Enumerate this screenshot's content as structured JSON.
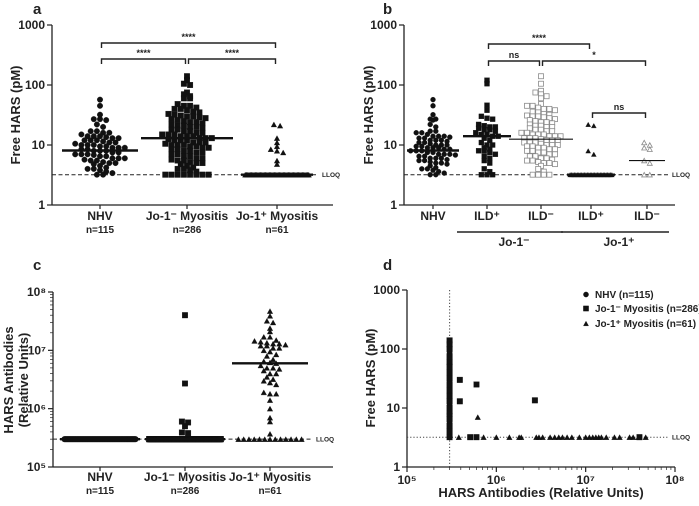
{
  "chart_data": [
    {
      "panel": "a",
      "type": "scatter",
      "subtype": "dot-plot-median",
      "ylabel": "Free HARS (pM)",
      "yscale": "log",
      "ylim": [
        1,
        1000
      ],
      "yticks": [
        "1",
        "10",
        "100",
        "1000"
      ],
      "lloq": {
        "value": 3.2,
        "label": "LLOQ"
      },
      "groups": [
        {
          "label": "NHV",
          "n_label": "n=115",
          "marker": "circle",
          "fill": "#111111",
          "median": 8.1,
          "lloq_count": 0,
          "values": [
            57,
            45,
            32,
            27,
            27,
            26,
            22,
            20,
            17,
            17,
            16,
            16,
            15,
            14,
            14,
            14,
            13.5,
            13,
            13,
            12,
            12,
            12,
            11.5,
            11,
            11,
            10.5,
            10,
            10,
            10,
            9.5,
            9.5,
            9,
            9,
            9,
            8.5,
            8.5,
            8,
            8,
            8,
            7.5,
            7.5,
            7,
            7,
            7,
            6.8,
            6.5,
            6.5,
            6,
            6,
            6,
            5.7,
            5.5,
            5.5,
            5.2,
            5,
            5,
            4.8,
            4.5,
            4.2,
            4,
            4,
            3.8,
            3.6,
            3.4,
            3.2,
            3.2
          ]
        },
        {
          "label": "Jo-1⁻ Myositis",
          "n_label": "n=286",
          "marker": "square",
          "fill": "#111111",
          "median": 13,
          "lloq_count": 8,
          "values": [
            140,
            120,
            105,
            100,
            75,
            70,
            65,
            60,
            60,
            48,
            45,
            45,
            42,
            40,
            40,
            38,
            36,
            35,
            33,
            32,
            31,
            30,
            30,
            29,
            28,
            27,
            26,
            25,
            24,
            24,
            23,
            22,
            21,
            21,
            20,
            20,
            19,
            18,
            18,
            17,
            17,
            16,
            16,
            15,
            15,
            15,
            14,
            14,
            14,
            13,
            13,
            13,
            12.5,
            12,
            12,
            12,
            11,
            11,
            11,
            10.5,
            10,
            10,
            10,
            9.5,
            9.5,
            9,
            9,
            8.5,
            8.5,
            8,
            8,
            7.5,
            7.5,
            7,
            7,
            6.5,
            6.5,
            6,
            6,
            5.7,
            5.5,
            5.5,
            5.2,
            5,
            5,
            4.8,
            4.5,
            4.2,
            4,
            4,
            3.8,
            3.6
          ]
        },
        {
          "label": "Jo-1⁺ Myositis",
          "n_label": "n=61",
          "marker": "triangle",
          "fill": "#111111",
          "median": 3.2,
          "lloq_count": 51,
          "values": [
            22,
            21,
            13,
            11,
            9.5,
            8.5,
            8,
            7.5,
            5.5,
            4.8
          ]
        }
      ],
      "comparisons": [
        {
          "from": 0,
          "to": 1,
          "label": "****",
          "level": 1
        },
        {
          "from": 1,
          "to": 2,
          "label": "****",
          "level": 1
        },
        {
          "from": 0,
          "to": 2,
          "label": "****",
          "level": 2
        }
      ]
    },
    {
      "panel": "b",
      "type": "scatter",
      "subtype": "dot-plot-median",
      "ylabel": "Free HARS (pM)",
      "yscale": "log",
      "ylim": [
        1,
        1000
      ],
      "yticks": [
        "1",
        "10",
        "100",
        "1000"
      ],
      "lloq": {
        "value": 3.2,
        "label": "LLOQ"
      },
      "groups": [
        {
          "label": "NHV",
          "marker": "circle",
          "fill": "#111111",
          "median": 8.1,
          "lloq_count": 0,
          "values": [
            57,
            45,
            32,
            27,
            27,
            26,
            22,
            20,
            17,
            17,
            16,
            16,
            15,
            14,
            14,
            14,
            13.5,
            13,
            13,
            12,
            12,
            12,
            11.5,
            11,
            11,
            10.5,
            10,
            10,
            10,
            9.5,
            9.5,
            9,
            9,
            9,
            8.5,
            8.5,
            8,
            8,
            8,
            7.5,
            7.5,
            7,
            7,
            7,
            6.8,
            6.5,
            6.5,
            6,
            6,
            6,
            5.7,
            5.5,
            5.5,
            5.2,
            5,
            5,
            4.8,
            4.5,
            4.2,
            4,
            4,
            3.8,
            3.6,
            3.4,
            3.2,
            3.2
          ]
        },
        {
          "label": "ILD⁺",
          "marker": "square",
          "fill": "#111111",
          "median": 14,
          "lloq_count": 3,
          "values": [
            120,
            105,
            46,
            38,
            30,
            28,
            27,
            22,
            21,
            20,
            20,
            19,
            18,
            18,
            17,
            16,
            15,
            15,
            14,
            14,
            13,
            12,
            11,
            10,
            10,
            9,
            8.5,
            8,
            8,
            7.5,
            7,
            6.5,
            6,
            5.5,
            5,
            4,
            3.6
          ]
        },
        {
          "label": "ILD⁻",
          "marker": "square-open",
          "fill": "#8a8a8a",
          "median": 12.5,
          "lloq_count": 4,
          "values": [
            140,
            105,
            80,
            75,
            70,
            65,
            60,
            48,
            45,
            45,
            42,
            40,
            40,
            38,
            36,
            35,
            33,
            32,
            31,
            30,
            30,
            29,
            28,
            27,
            26,
            25,
            24,
            24,
            23,
            22,
            21,
            21,
            20,
            20,
            19,
            18,
            18,
            17,
            17,
            16,
            16,
            15,
            15,
            15,
            14,
            14,
            14,
            13,
            13,
            13,
            12.5,
            12,
            12,
            12,
            11,
            11,
            11,
            10.5,
            10,
            10,
            10,
            9.5,
            9.5,
            9,
            9,
            8.5,
            8.5,
            8,
            8,
            7.5,
            7.5,
            7,
            7,
            6.5,
            6.5,
            6,
            6,
            5.7,
            5.5,
            5.5,
            5.2,
            5,
            5,
            4.8,
            4.5,
            4,
            3.6
          ]
        },
        {
          "label": "ILD⁺",
          "marker": "triangle",
          "fill": "#111111",
          "median": 3.2,
          "lloq_count": 30,
          "values": [
            22,
            21,
            8,
            7
          ]
        },
        {
          "label": "ILD⁻",
          "marker": "triangle-open",
          "fill": "#8a8a8a",
          "median": 5.5,
          "lloq_count": 2,
          "values": [
            11,
            10,
            9,
            8.5,
            5.5,
            5
          ]
        }
      ],
      "group_headers": [
        {
          "label": "Jo-1⁻",
          "from": 1,
          "to": 2
        },
        {
          "label": "Jo-1⁺",
          "from": 3,
          "to": 4
        }
      ],
      "comparisons": [
        {
          "from": 1,
          "to": 3,
          "label": "****",
          "level": 3
        },
        {
          "from": 1,
          "to": 2,
          "label": "ns",
          "level": 2
        },
        {
          "from": 2,
          "to": 4,
          "label": "*",
          "level": 2
        },
        {
          "from": 3,
          "to": 4,
          "label": "ns",
          "level": 1
        }
      ]
    },
    {
      "panel": "c",
      "type": "scatter",
      "subtype": "dot-plot-median",
      "ylabel": [
        "HARS Antibodies",
        "(Relative Units)"
      ],
      "yscale": "log",
      "ylim": [
        100000,
        100000000
      ],
      "yticks": [
        "10⁵",
        "10⁶",
        "10⁷",
        "10⁸"
      ],
      "lloq": {
        "value": 300000,
        "label": "LLOQ"
      },
      "groups": [
        {
          "label": "NHV",
          "n_label": "n=115",
          "marker": "circle",
          "fill": "#111111",
          "median": 300000,
          "lloq_count": 115,
          "values": []
        },
        {
          "label": "Jo-1⁻ Myositis",
          "n_label": "n=286",
          "marker": "square",
          "fill": "#111111",
          "median": 300000,
          "lloq_count": 279,
          "values": [
            40000000,
            2700000,
            600000,
            580000,
            500000,
            390000,
            380000
          ]
        },
        {
          "label": "Jo-1⁺ Myositis",
          "n_label": "n=61",
          "marker": "triangle",
          "fill": "#111111",
          "median": 6000000,
          "lloq_count": 13,
          "values": [
            47000000,
            39000000,
            32000000,
            30000000,
            24000000,
            21000000,
            17000000,
            17000000,
            15000000,
            14500000,
            14000000,
            13500000,
            13000000,
            13000000,
            12500000,
            12000000,
            12000000,
            11000000,
            11000000,
            10000000,
            9500000,
            8500000,
            8000000,
            7000000,
            6500000,
            6200000,
            6000000,
            5500000,
            5000000,
            5000000,
            4800000,
            4500000,
            4000000,
            4000000,
            3500000,
            3200000,
            3000000,
            2800000,
            2600000,
            1900000,
            1800000,
            1800000,
            1400000,
            1000000,
            700000,
            600000,
            370000
          ]
        }
      ]
    },
    {
      "panel": "d",
      "type": "scatter",
      "xlabel": "HARS Antibodies (Relative Units)",
      "ylabel": "Free HARS (pM)",
      "xscale": "log",
      "yscale": "log",
      "xlim": [
        100000,
        100000000
      ],
      "ylim": [
        1,
        1000
      ],
      "xticks": [
        "10⁵",
        "10⁶",
        "10⁷",
        "10⁸"
      ],
      "yticks": [
        "1",
        "10",
        "100",
        "1000"
      ],
      "lloq_x": 300000,
      "lloq_y": {
        "value": 3.2,
        "label": "LLOQ"
      },
      "legend": {
        "position": "top-right"
      },
      "series": [
        {
          "name": "NHV (n=115)",
          "marker": "circle",
          "points": [
            [
              300000,
              8
            ]
          ]
        },
        {
          "name": "Jo-1⁻ Myositis (n=286)",
          "marker": "square",
          "points": [
            [
              300000,
              140
            ],
            [
              300000,
              120
            ],
            [
              300000,
              100
            ],
            [
              300000,
              75
            ],
            [
              300000,
              60
            ],
            [
              300000,
              50
            ],
            [
              300000,
              40
            ],
            [
              300000,
              32
            ],
            [
              300000,
              25
            ],
            [
              300000,
              20
            ],
            [
              300000,
              16
            ],
            [
              300000,
              13
            ],
            [
              300000,
              10
            ],
            [
              300000,
              8
            ],
            [
              300000,
              6.5
            ],
            [
              300000,
              5
            ],
            [
              300000,
              4
            ],
            [
              300000,
              3.2
            ],
            [
              390000,
              30
            ],
            [
              390000,
              13
            ],
            [
              600000,
              25
            ],
            [
              2700000,
              13.5
            ],
            [
              510000,
              3.2
            ],
            [
              600000,
              3.2
            ],
            [
              40000000,
              3.2
            ]
          ]
        },
        {
          "name": "Jo-1⁺ Myositis (n=61)",
          "marker": "triangle",
          "points": [
            [
              620000,
              7
            ],
            [
              380000,
              3.2
            ],
            [
              720000,
              3.2
            ],
            [
              1000000,
              3.2
            ],
            [
              1400000,
              3.2
            ],
            [
              1800000,
              3.2
            ],
            [
              1900000,
              3.2
            ],
            [
              2800000,
              3.2
            ],
            [
              3000000,
              3.2
            ],
            [
              3300000,
              3.2
            ],
            [
              4000000,
              3.2
            ],
            [
              4500000,
              3.2
            ],
            [
              5000000,
              3.2
            ],
            [
              5500000,
              3.2
            ],
            [
              6200000,
              3.2
            ],
            [
              7000000,
              3.2
            ],
            [
              8500000,
              3.2
            ],
            [
              10000000,
              3.2
            ],
            [
              11000000,
              3.2
            ],
            [
              12000000,
              3.2
            ],
            [
              13000000,
              3.2
            ],
            [
              14000000,
              3.2
            ],
            [
              15000000,
              3.2
            ],
            [
              17000000,
              3.2
            ],
            [
              21000000,
              3.2
            ],
            [
              24000000,
              3.2
            ],
            [
              31000000,
              3.2
            ],
            [
              34000000,
              3.2
            ],
            [
              39000000,
              3.2
            ],
            [
              47000000,
              3.2
            ]
          ]
        }
      ]
    }
  ]
}
